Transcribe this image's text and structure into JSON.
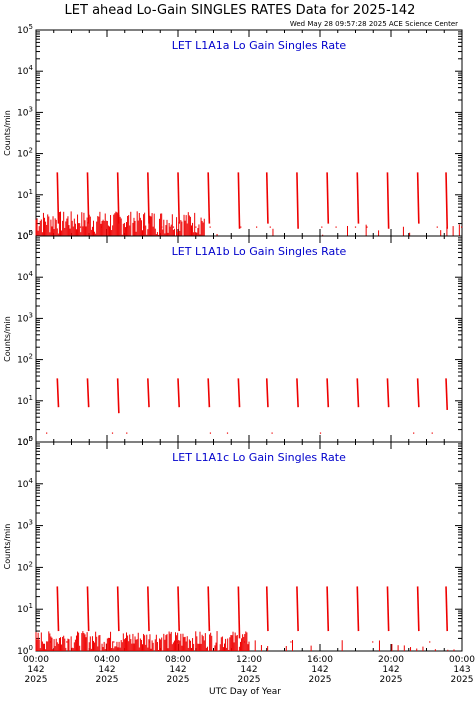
{
  "title": "LET ahead Lo-Gain SINGLES RATES Data for 2025-142",
  "timestamp": "Wed May 28 09:57:28 2025 ACE Science Center",
  "xlabel": "UTC Day of Year",
  "colors": {
    "data": "#ee0000",
    "panel_title": "#0000cc",
    "axes": "#000000"
  },
  "x_ticks": [
    {
      "time": "00:00",
      "doy": "142",
      "year": "2025"
    },
    {
      "time": "04:00",
      "doy": "142",
      "year": "2025"
    },
    {
      "time": "08:00",
      "doy": "142",
      "year": "2025"
    },
    {
      "time": "12:00",
      "doy": "142",
      "year": "2025"
    },
    {
      "time": "16:00",
      "doy": "142",
      "year": "2025"
    },
    {
      "time": "20:00",
      "doy": "142",
      "year": "2025"
    },
    {
      "time": "00:00",
      "doy": "143",
      "year": "2025"
    }
  ],
  "chart_data": [
    {
      "type": "line",
      "title": "LET L1A1a Lo Gain Singles Rate",
      "ylabel": "Counts/min",
      "yscale": "log",
      "ylim": [
        1,
        100000
      ],
      "xlim_hours": [
        0,
        24
      ],
      "y_ticks": [
        {
          "exp": "0",
          "value": 1
        },
        {
          "exp": "1",
          "value": 10
        },
        {
          "exp": "2",
          "value": 100
        },
        {
          "exp": "3",
          "value": 1000
        },
        {
          "exp": "4",
          "value": 10000
        },
        {
          "exp": "5",
          "value": 100000
        }
      ],
      "spikes": [
        {
          "hour": 1.2,
          "peak": 35,
          "base": 2
        },
        {
          "hour": 2.9,
          "peak": 35,
          "base": 2
        },
        {
          "hour": 4.6,
          "peak": 35,
          "base": 2
        },
        {
          "hour": 6.3,
          "peak": 35,
          "base": 2
        },
        {
          "hour": 8.0,
          "peak": 35,
          "base": 2
        },
        {
          "hour": 9.7,
          "peak": 35,
          "base": 2
        },
        {
          "hour": 11.4,
          "peak": 35,
          "base": 1.5
        },
        {
          "hour": 13.0,
          "peak": 35,
          "base": 2
        },
        {
          "hour": 14.7,
          "peak": 35,
          "base": 1.5
        },
        {
          "hour": 16.4,
          "peak": 35,
          "base": 2
        },
        {
          "hour": 18.1,
          "peak": 35,
          "base": 2
        },
        {
          "hour": 19.8,
          "peak": 35,
          "base": 1.5
        },
        {
          "hour": 21.5,
          "peak": 35,
          "base": 2
        },
        {
          "hour": 23.1,
          "peak": 35,
          "base": 1.5
        }
      ],
      "noise_until_hour": 9.5,
      "noise_max": 4
    },
    {
      "type": "line",
      "title": "LET L1A1b Lo Gain Singles Rate",
      "ylabel": "Counts/min",
      "yscale": "log",
      "ylim": [
        1,
        100000
      ],
      "xlim_hours": [
        0,
        24
      ],
      "y_ticks": [
        {
          "exp": "0",
          "value": 1
        },
        {
          "exp": "1",
          "value": 10
        },
        {
          "exp": "2",
          "value": 100
        },
        {
          "exp": "3",
          "value": 1000
        },
        {
          "exp": "4",
          "value": 10000
        },
        {
          "exp": "5",
          "value": 100000
        }
      ],
      "spikes": [
        {
          "hour": 1.2,
          "peak": 35,
          "base": 7
        },
        {
          "hour": 2.9,
          "peak": 35,
          "base": 7
        },
        {
          "hour": 4.6,
          "peak": 35,
          "base": 5
        },
        {
          "hour": 6.3,
          "peak": 35,
          "base": 7
        },
        {
          "hour": 8.0,
          "peak": 35,
          "base": 7
        },
        {
          "hour": 9.7,
          "peak": 35,
          "base": 7
        },
        {
          "hour": 11.4,
          "peak": 35,
          "base": 7
        },
        {
          "hour": 13.0,
          "peak": 35,
          "base": 7
        },
        {
          "hour": 14.7,
          "peak": 35,
          "base": 7
        },
        {
          "hour": 16.4,
          "peak": 35,
          "base": 7
        },
        {
          "hour": 18.1,
          "peak": 35,
          "base": 7
        },
        {
          "hour": 19.8,
          "peak": 35,
          "base": 7
        },
        {
          "hour": 21.5,
          "peak": 35,
          "base": 7
        },
        {
          "hour": 23.1,
          "peak": 35,
          "base": 6
        }
      ],
      "noise_until_hour": 0,
      "noise_max": 1
    },
    {
      "type": "line",
      "title": "LET L1A1c Lo Gain Singles Rate",
      "ylabel": "Counts/min",
      "yscale": "log",
      "ylim": [
        1,
        100000
      ],
      "xlim_hours": [
        0,
        24
      ],
      "y_ticks": [
        {
          "exp": "0",
          "value": 1
        },
        {
          "exp": "1",
          "value": 10
        },
        {
          "exp": "2",
          "value": 100
        },
        {
          "exp": "3",
          "value": 1000
        },
        {
          "exp": "4",
          "value": 10000
        },
        {
          "exp": "5",
          "value": 100000
        }
      ],
      "spikes": [
        {
          "hour": 1.2,
          "peak": 35,
          "base": 3
        },
        {
          "hour": 2.9,
          "peak": 35,
          "base": 3
        },
        {
          "hour": 4.6,
          "peak": 35,
          "base": 3
        },
        {
          "hour": 6.3,
          "peak": 35,
          "base": 3
        },
        {
          "hour": 8.0,
          "peak": 35,
          "base": 3
        },
        {
          "hour": 9.7,
          "peak": 35,
          "base": 3
        },
        {
          "hour": 11.4,
          "peak": 35,
          "base": 2
        },
        {
          "hour": 13.0,
          "peak": 35,
          "base": 3
        },
        {
          "hour": 14.7,
          "peak": 35,
          "base": 3
        },
        {
          "hour": 16.4,
          "peak": 35,
          "base": 3
        },
        {
          "hour": 18.1,
          "peak": 35,
          "base": 3
        },
        {
          "hour": 19.8,
          "peak": 35,
          "base": 3
        },
        {
          "hour": 21.5,
          "peak": 35,
          "base": 3
        },
        {
          "hour": 23.1,
          "peak": 35,
          "base": 3
        }
      ],
      "noise_until_hour": 12,
      "noise_max": 3
    }
  ]
}
